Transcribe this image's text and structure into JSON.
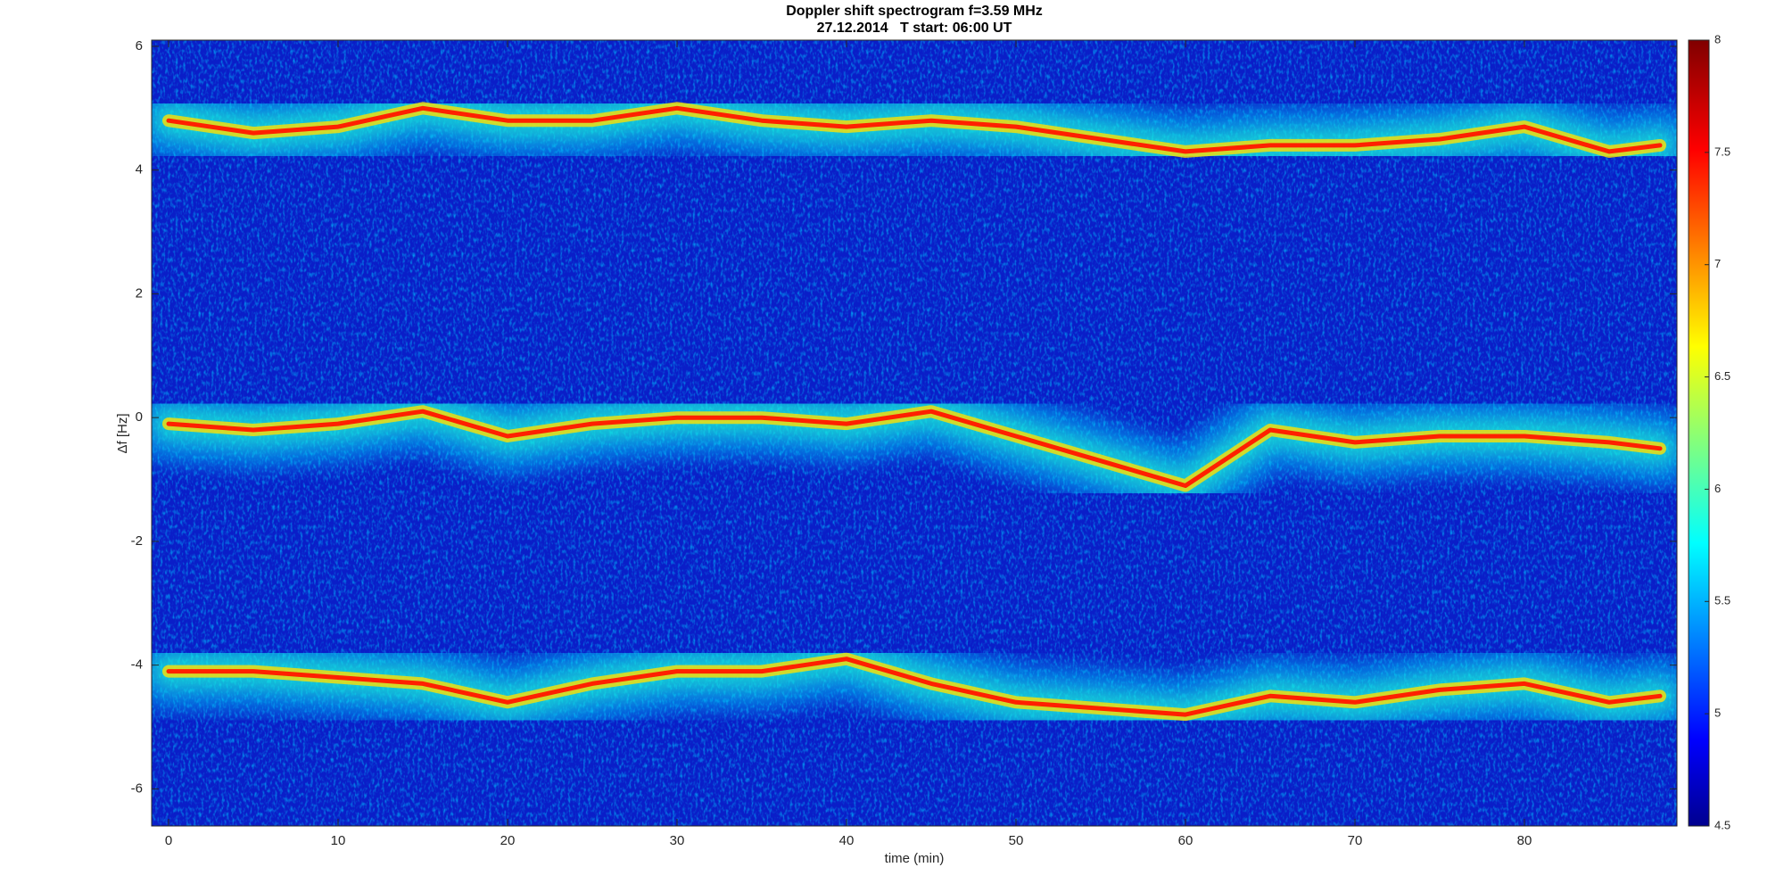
{
  "chart_data": {
    "type": "spectrogram",
    "title": "Doppler shift spectrogram f=3.59 MHz",
    "subtitle": "27.12.2014   T start: 06:00 UT",
    "x_label": "time (min)",
    "y_label": "Δf [Hz]",
    "xlim": [
      -1,
      89
    ],
    "ylim": [
      -6.6,
      6.1
    ],
    "xticks": [
      0,
      10,
      20,
      30,
      40,
      50,
      60,
      70,
      80
    ],
    "yticks": [
      -6,
      -4,
      -2,
      0,
      2,
      4,
      6
    ],
    "colormap": "jet",
    "clim": [
      4.5,
      8
    ],
    "cticks": [
      4.5,
      5,
      5.5,
      6,
      6.5,
      7,
      7.5,
      8
    ],
    "x": [
      0,
      5,
      10,
      15,
      20,
      25,
      30,
      35,
      40,
      45,
      50,
      55,
      60,
      65,
      70,
      75,
      80,
      85,
      88
    ],
    "series": [
      {
        "color": "#ff2000",
        "values": [
          4.8,
          4.6,
          4.7,
          5.0,
          4.8,
          4.8,
          5.0,
          4.8,
          4.7,
          4.8,
          4.7,
          4.5,
          4.3,
          4.4,
          4.4,
          4.5,
          4.7,
          4.3,
          4.4
        ]
      },
      {
        "color": "#ff2000",
        "values": [
          -0.1,
          -0.2,
          -0.1,
          0.1,
          -0.3,
          -0.1,
          0.0,
          0.0,
          -0.1,
          0.1,
          -0.3,
          -0.7,
          -1.1,
          -0.2,
          -0.4,
          -0.3,
          -0.3,
          -0.4,
          -0.5
        ]
      },
      {
        "color": "#ff2000",
        "values": [
          -4.1,
          -4.1,
          -4.2,
          -4.3,
          -4.6,
          -4.3,
          -4.1,
          -4.1,
          -3.9,
          -4.3,
          -4.6,
          -4.7,
          -4.8,
          -4.5,
          -4.6,
          -4.4,
          -4.3,
          -4.6,
          -4.5
        ]
      }
    ]
  }
}
